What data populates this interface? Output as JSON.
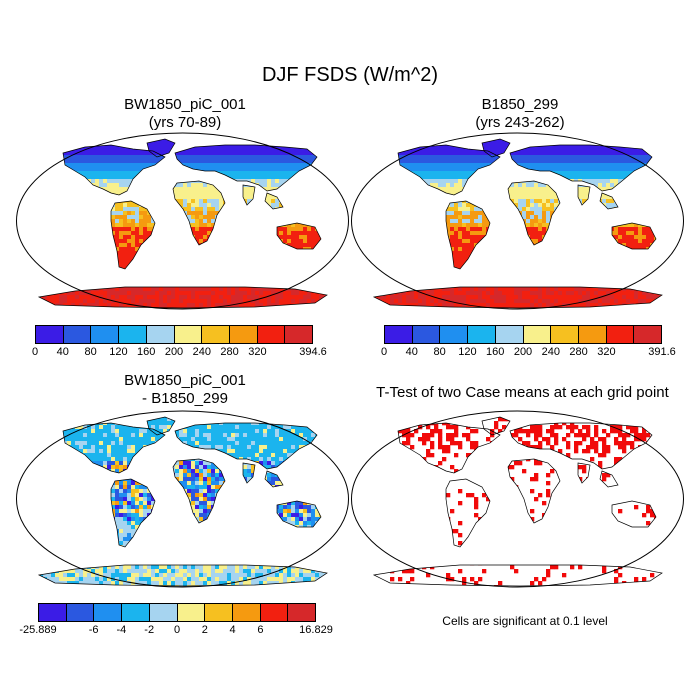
{
  "figure": {
    "title": "DJF FSDS (W/m^2)",
    "note": "Cells are significant at 0.1 level"
  },
  "panels": [
    {
      "title_line1": "BW1850_piC_001",
      "title_line2": "(yrs 70-89)",
      "colorbar": {
        "colors": [
          "#3b1ce6",
          "#2b58e0",
          "#1f8ff0",
          "#1bb4ee",
          "#a6d4f0",
          "#f8f08c",
          "#f6c020",
          "#f59a10",
          "#f22010",
          "#d6282a"
        ],
        "labels": [
          "0",
          "40",
          "80",
          "120",
          "160",
          "200",
          "240",
          "280",
          "320",
          "394.6"
        ]
      }
    },
    {
      "title_line1": "B1850_299",
      "title_line2": "(yrs 243-262)",
      "colorbar": {
        "colors": [
          "#3b1ce6",
          "#2b58e0",
          "#1f8ff0",
          "#1bb4ee",
          "#a6d4f0",
          "#f8f08c",
          "#f6c020",
          "#f59a10",
          "#f22010",
          "#d6282a"
        ],
        "labels": [
          "0",
          "40",
          "80",
          "120",
          "160",
          "200",
          "240",
          "280",
          "320",
          "391.6"
        ]
      }
    },
    {
      "title_line1": "BW1850_piC_001",
      "title_line2": "- B1850_299",
      "colorbar": {
        "colors": [
          "#3b1ce6",
          "#2b58e0",
          "#1f8ff0",
          "#1bb4ee",
          "#a6d4f0",
          "#f8f08c",
          "#f6c020",
          "#f59a10",
          "#f22010",
          "#d6282a"
        ],
        "labels": [
          "-25.889",
          "-6",
          "-4",
          "-2",
          "0",
          "2",
          "4",
          "6",
          "16.829"
        ]
      }
    },
    {
      "title_line1": "T-Test of two Case means at each grid point",
      "title_line2": ""
    }
  ]
}
